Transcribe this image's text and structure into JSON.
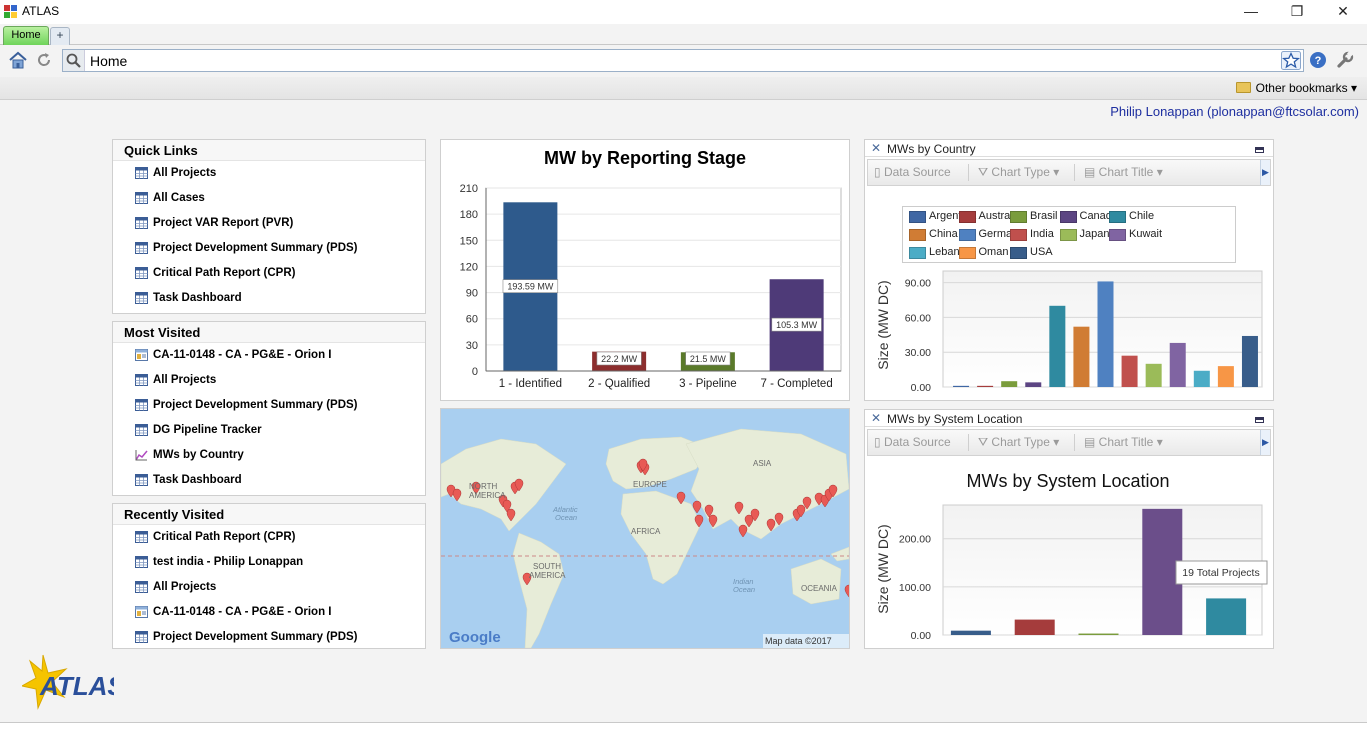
{
  "window": {
    "title": "ATLAS",
    "controls": {
      "minimize": "—",
      "restore": "❐",
      "close": "✕"
    }
  },
  "tabs": [
    {
      "label": "Home",
      "active": true
    },
    {
      "label": "+"
    }
  ],
  "address_bar": {
    "value": "Home"
  },
  "bookmarks": {
    "label": "Other bookmarks ▾"
  },
  "user": {
    "name": "Philip Lonappan (plonappan@ftcsolar.com)"
  },
  "quick_links": {
    "title": "Quick Links",
    "items": [
      {
        "label": "All Projects",
        "icon": "grid-icon"
      },
      {
        "label": "All Cases",
        "icon": "grid-icon"
      },
      {
        "label": "Project VAR Report (PVR)",
        "icon": "grid-icon"
      },
      {
        "label": "Project Development Summary (PDS)",
        "icon": "grid-icon"
      },
      {
        "label": "Critical Path Report (CPR)",
        "icon": "grid-icon"
      },
      {
        "label": "Task Dashboard",
        "icon": "grid-icon"
      }
    ]
  },
  "most_visited": {
    "title": "Most Visited",
    "items": [
      {
        "label": "CA-11-0148 - CA - PG&E - Orion I",
        "icon": "record-icon"
      },
      {
        "label": "All Projects",
        "icon": "grid-icon"
      },
      {
        "label": "Project Development Summary (PDS)",
        "icon": "grid-icon"
      },
      {
        "label": "DG Pipeline Tracker",
        "icon": "grid-icon"
      },
      {
        "label": "MWs by Country",
        "icon": "chart-icon"
      },
      {
        "label": "Task Dashboard",
        "icon": "grid-icon"
      }
    ]
  },
  "recently_visited": {
    "title": "Recently Visited",
    "items": [
      {
        "label": "Critical Path Report (CPR)",
        "icon": "grid-icon"
      },
      {
        "label": "test india - Philip Lonappan",
        "icon": "grid-icon"
      },
      {
        "label": "All Projects",
        "icon": "grid-icon"
      },
      {
        "label": "CA-11-0148 - CA - PG&E - Orion I",
        "icon": "record-icon"
      },
      {
        "label": "Project Development Summary (PDS)",
        "icon": "grid-icon"
      }
    ]
  },
  "widget_toolbar": {
    "data_source": "Data Source",
    "chart_type": "Chart Type ▾",
    "chart_title": "Chart Title ▾"
  },
  "map": {
    "labels": {
      "north_america": "NORTH\nAMERICA",
      "south_america": "SOUTH\nAMERICA",
      "europe": "EUROPE",
      "africa": "AFRICA",
      "asia": "ASIA",
      "oceania": "OCEANIA",
      "atlantic": "Atlantic\nOcean",
      "indian": "Indian\nOcean"
    },
    "google": "Google",
    "credit": "Map data ©2017"
  },
  "chart_data": [
    {
      "type": "bar",
      "title": "MW by Reporting Stage",
      "categories": [
        "1 - Identified",
        "2 - Qualified",
        "3 - Pipeline",
        "7 - Completed"
      ],
      "values": [
        193.59,
        22.2,
        21.5,
        105.3
      ],
      "data_labels": [
        "193.59 MW",
        "22.2 MW",
        "21.5 MW",
        "105.3 MW"
      ],
      "colors": [
        "#2e5a8c",
        "#8c2e2e",
        "#5a7a2a",
        "#4e3a78"
      ],
      "ylim": [
        0,
        210
      ],
      "yticks": [
        "0",
        "30",
        "60",
        "90",
        "120",
        "150",
        "180",
        "210"
      ],
      "grid": true
    },
    {
      "type": "bar",
      "widget_title": "MWs by Country",
      "ylabel": "Size (MW DC)",
      "ylim": [
        0,
        100
      ],
      "yticks": [
        "0.00",
        "30.00",
        "60.00",
        "90.00"
      ],
      "legend_placement": "top",
      "series": [
        {
          "name": "Argentina",
          "value": 1,
          "color": "#3f67a4"
        },
        {
          "name": "Australia",
          "value": 1,
          "color": "#a53c3c"
        },
        {
          "name": "Brasil",
          "value": 5,
          "color": "#7a9c3c"
        },
        {
          "name": "Canada",
          "value": 4,
          "color": "#5c4583"
        },
        {
          "name": "Chile",
          "value": 70,
          "color": "#2f8aa0"
        },
        {
          "name": "China",
          "value": 52,
          "color": "#d07c34"
        },
        {
          "name": "Germany",
          "value": 91,
          "color": "#4f81c1"
        },
        {
          "name": "India",
          "value": 27,
          "color": "#c0504d"
        },
        {
          "name": "Japan",
          "value": 20,
          "color": "#9bbb59"
        },
        {
          "name": "Kuwait",
          "value": 38,
          "color": "#8064a2"
        },
        {
          "name": "Lebanon",
          "value": 14,
          "color": "#4bacc6"
        },
        {
          "name": "Oman",
          "value": 18,
          "color": "#f79646"
        },
        {
          "name": "USA",
          "value": 44,
          "color": "#385d8a"
        }
      ]
    },
    {
      "type": "bar",
      "widget_title": "MWs by System Location",
      "title": "MWs by System Location",
      "ylabel": "Size (MW DC)",
      "ylim": [
        0,
        270
      ],
      "yticks": [
        "0.00",
        "100.00",
        "200.00"
      ],
      "values": [
        9,
        32,
        3,
        262,
        76
      ],
      "colors": [
        "#385d8a",
        "#a53c3c",
        "#7a9c3c",
        "#6b4e8a",
        "#2f8aa0"
      ],
      "tooltip": "19 Total Projects"
    }
  ],
  "branding": {
    "logo_text": "ATLAS"
  }
}
